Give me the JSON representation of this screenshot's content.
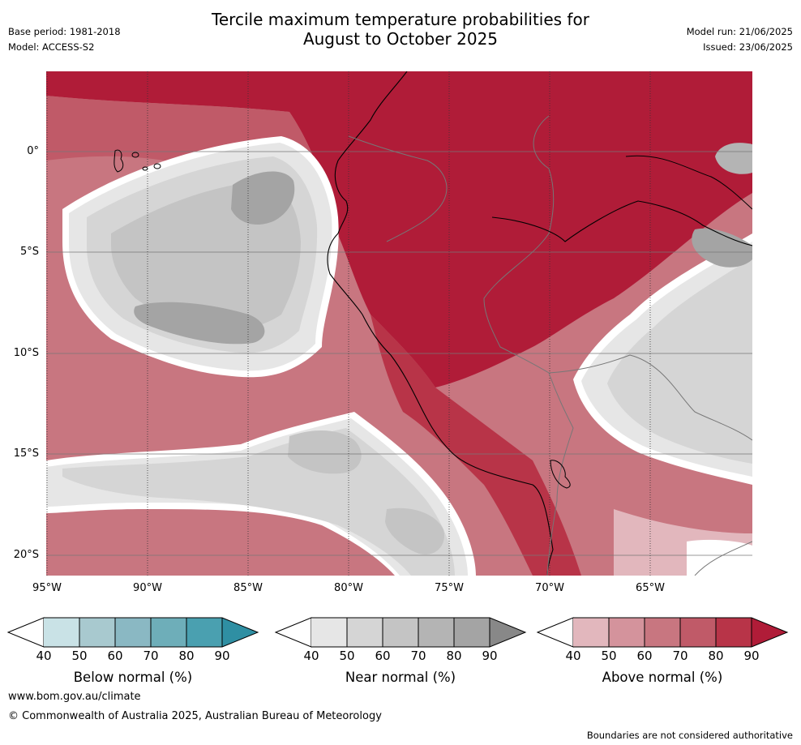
{
  "header": {
    "base_period": "Base period: 1981-2018",
    "model": "Model: ACCESS-S2",
    "title_line1": "Tercile maximum temperature probabilities for",
    "title_line2": "August to October 2025",
    "model_run": "Model run: 21/06/2025",
    "issued": "Issued: 23/06/2025"
  },
  "map": {
    "lat_labels": [
      "0°",
      "5°S",
      "10°S",
      "15°S",
      "20°S"
    ],
    "lon_labels": [
      "95°W",
      "90°W",
      "85°W",
      "80°W",
      "75°W",
      "70°W",
      "65°W"
    ]
  },
  "legend": {
    "below": {
      "label": "Below normal (%)",
      "ticks": [
        "40",
        "50",
        "60",
        "70",
        "80",
        "90"
      ],
      "colors": [
        "#ffffff",
        "#c9e2e6",
        "#a8c9cf",
        "#8ab8c3",
        "#6eaeb9",
        "#4aa0b0",
        "#2f8fa3"
      ]
    },
    "near": {
      "label": "Near normal (%)",
      "ticks": [
        "40",
        "50",
        "60",
        "70",
        "80",
        "90"
      ],
      "colors": [
        "#ffffff",
        "#e6e6e6",
        "#d5d5d5",
        "#c4c4c4",
        "#b4b4b4",
        "#a4a4a4",
        "#888888"
      ]
    },
    "above": {
      "label": "Above normal (%)",
      "ticks": [
        "40",
        "50",
        "60",
        "70",
        "80",
        "90"
      ],
      "colors": [
        "#ffffff",
        "#e2b7bd",
        "#d4939c",
        "#c87680",
        "#c05a68",
        "#b83448",
        "#b01c38"
      ]
    }
  },
  "footer": {
    "website": "www.bom.gov.au/climate",
    "copyright": "© Commonwealth of Australia 2025, Australian Bureau of Meteorology",
    "disclaimer": "Boundaries are not considered authoritative"
  }
}
